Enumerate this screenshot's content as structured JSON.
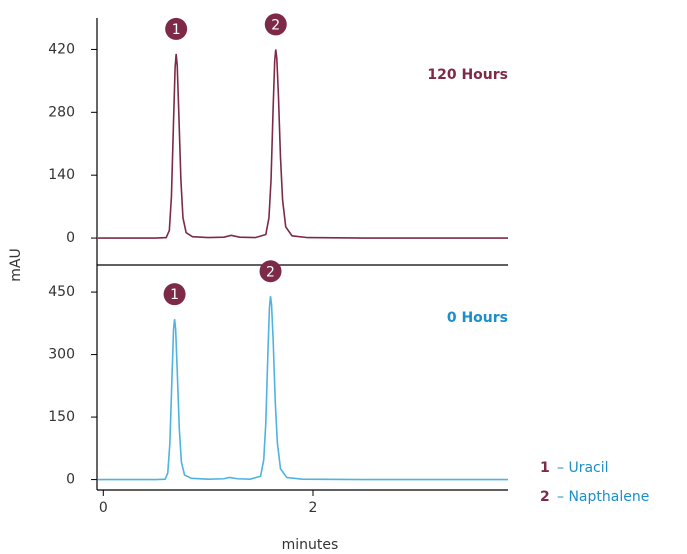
{
  "ylabel": "mAU",
  "legend": [
    {
      "number": "1",
      "label": "– Uracil"
    },
    {
      "number": "2",
      "label": "– Napthalene"
    }
  ],
  "chart_data": [
    {
      "type": "line",
      "annotations": [
        "1",
        "2"
      ],
      "x": [
        -0.05,
        0.5,
        0.6,
        0.63,
        0.65,
        0.67,
        0.685,
        0.695,
        0.705,
        0.72,
        0.74,
        0.76,
        0.79,
        0.85,
        1.0,
        1.15,
        1.22,
        1.3,
        1.45,
        1.55,
        1.58,
        1.6,
        1.62,
        1.635,
        1.645,
        1.655,
        1.67,
        1.69,
        1.71,
        1.74,
        1.8,
        1.95,
        2.5,
        3.86
      ],
      "series": [
        {
          "name": "120 Hours",
          "color": "#7d2a48",
          "values": [
            0,
            0,
            1,
            17,
            93,
            260,
            380,
            410,
            385,
            280,
            130,
            45,
            12,
            3,
            1,
            2,
            6,
            2,
            1,
            8,
            45,
            130,
            290,
            395,
            420,
            400,
            320,
            180,
            85,
            25,
            5,
            1,
            0,
            0
          ]
        }
      ],
      "xlim": [
        -0.06,
        3.86
      ],
      "ylim": [
        -60,
        490
      ],
      "yticks": [
        0,
        140,
        280,
        420
      ]
    },
    {
      "type": "line",
      "annotations": [
        "1",
        "2"
      ],
      "xlabel": "minutes",
      "x": [
        -0.05,
        0.5,
        0.59,
        0.615,
        0.635,
        0.655,
        0.67,
        0.68,
        0.69,
        0.705,
        0.725,
        0.745,
        0.775,
        0.84,
        1.0,
        1.15,
        1.2,
        1.28,
        1.4,
        1.5,
        1.53,
        1.55,
        1.57,
        1.585,
        1.595,
        1.605,
        1.62,
        1.64,
        1.66,
        1.69,
        1.75,
        1.9,
        2.5,
        3.86
      ],
      "series": [
        {
          "name": "0 Hours",
          "color": "#4fb3df",
          "values": [
            0,
            0,
            1,
            16,
            87,
            245,
            360,
            385,
            362,
            262,
            122,
            42,
            11,
            3,
            1,
            2,
            5,
            2,
            1,
            8,
            47,
            136,
            304,
            414,
            440,
            419,
            335,
            188,
            89,
            26,
            5,
            1,
            0,
            0
          ]
        }
      ],
      "xlim": [
        -0.06,
        3.86
      ],
      "ylim": [
        -25,
        515
      ],
      "yticks": [
        0,
        150,
        300,
        450
      ],
      "xticks": [
        0,
        2
      ]
    }
  ]
}
